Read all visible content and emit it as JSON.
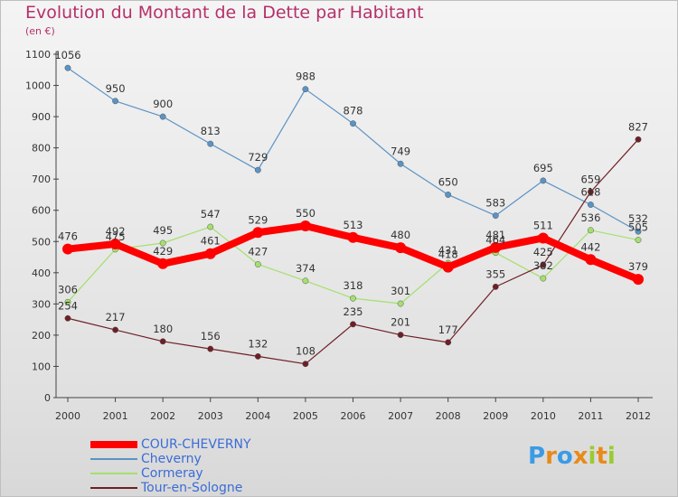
{
  "title": "Evolution du Montant de la Dette par Habitant",
  "unit": "(en €)",
  "logo": "Proxiti",
  "chart_data": {
    "type": "line",
    "x": [
      "2000",
      "2001",
      "2002",
      "2003",
      "2004",
      "2005",
      "2006",
      "2007",
      "2008",
      "2009",
      "2010",
      "2011",
      "2012"
    ],
    "ylim": [
      0,
      1100
    ],
    "yticks": [
      0,
      100,
      200,
      300,
      400,
      500,
      600,
      700,
      800,
      900,
      1000,
      1100
    ],
    "grid": false,
    "legend_position": "bottom-left",
    "series": [
      {
        "name": "COUR-CHEVERNY",
        "color": "#ff0000",
        "values": [
          476,
          492,
          429,
          461,
          529,
          550,
          513,
          480,
          418,
          481,
          511,
          442,
          379
        ]
      },
      {
        "name": "Cheverny",
        "color": "#5b93c4",
        "values": [
          1056,
          950,
          900,
          813,
          729,
          988,
          878,
          749,
          650,
          583,
          695,
          618,
          532
        ]
      },
      {
        "name": "Cormeray",
        "color": "#a4e06e",
        "values": [
          306,
          475,
          495,
          547,
          427,
          374,
          318,
          301,
          431,
          464,
          382,
          536,
          505
        ]
      },
      {
        "name": "Tour-en-Sologne",
        "color": "#6e1f26",
        "values": [
          254,
          217,
          180,
          156,
          132,
          108,
          235,
          201,
          177,
          355,
          425,
          659,
          827
        ]
      }
    ]
  }
}
